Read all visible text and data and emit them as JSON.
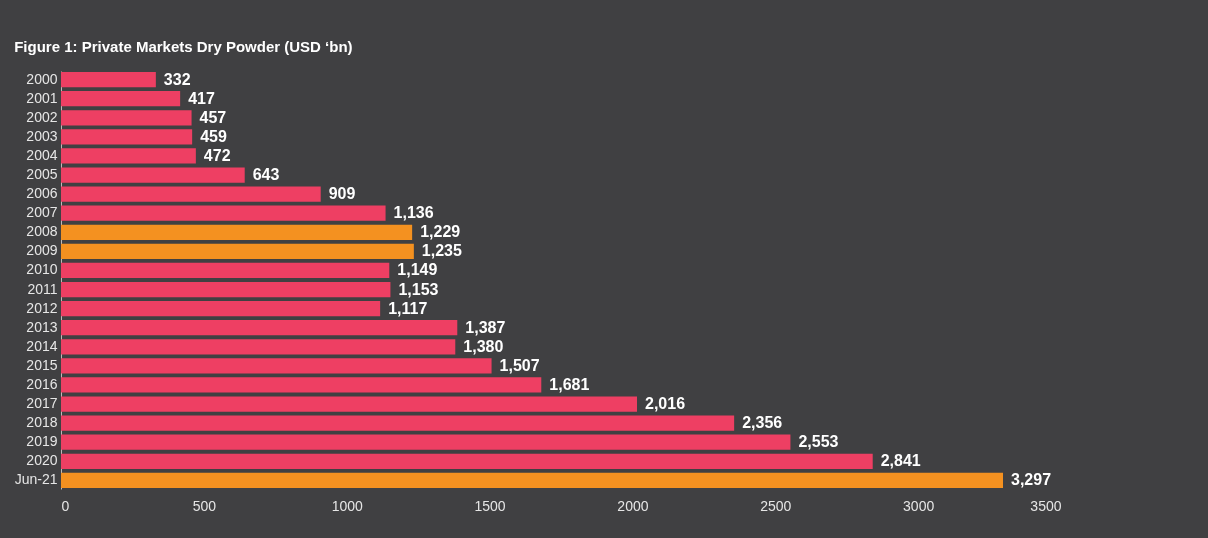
{
  "chart_data": {
    "type": "bar",
    "orientation": "horizontal",
    "title": "Figure 1: Private Markets Dry Powder (USD ‘bn)",
    "categories": [
      "2000",
      "2001",
      "2002",
      "2003",
      "2004",
      "2005",
      "2006",
      "2007",
      "2008",
      "2009",
      "2010",
      "2011",
      "2012",
      "2013",
      "2014",
      "2015",
      "2016",
      "2017",
      "2018",
      "2019",
      "2020",
      "Jun-21"
    ],
    "values": [
      332,
      417,
      457,
      459,
      472,
      643,
      909,
      1136,
      1229,
      1235,
      1149,
      1153,
      1117,
      1387,
      1380,
      1507,
      1681,
      2016,
      2356,
      2553,
      2841,
      3297
    ],
    "value_labels": [
      "332",
      "417",
      "457",
      "459",
      "472",
      "643",
      "909",
      "1,136",
      "1,229",
      "1,235",
      "1,149",
      "1,153",
      "1,117",
      "1,387",
      "1,380",
      "1,507",
      "1,681",
      "2,016",
      "2,356",
      "2,553",
      "2,841",
      "3,297"
    ],
    "colors": [
      "#ee3f63",
      "#ee3f63",
      "#ee3f63",
      "#ee3f63",
      "#ee3f63",
      "#ee3f63",
      "#ee3f63",
      "#ee3f63",
      "#f49120",
      "#f49120",
      "#ee3f63",
      "#ee3f63",
      "#ee3f63",
      "#ee3f63",
      "#ee3f63",
      "#ee3f63",
      "#ee3f63",
      "#ee3f63",
      "#ee3f63",
      "#ee3f63",
      "#ee3f63",
      "#f49120"
    ],
    "xlim": [
      0,
      3500
    ],
    "xticks": [
      0,
      500,
      1000,
      1500,
      2000,
      2500,
      3000,
      3500
    ],
    "grid": false
  }
}
